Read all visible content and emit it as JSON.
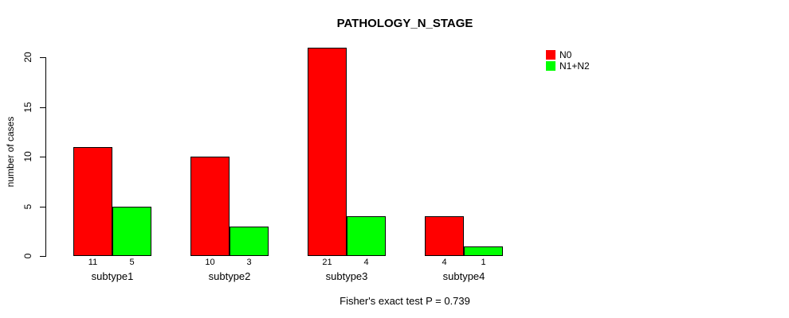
{
  "chart_data": {
    "type": "bar",
    "title": "PATHOLOGY_N_STAGE",
    "ylabel": "number of cases",
    "xlabel": "",
    "categories": [
      "subtype1",
      "subtype2",
      "subtype3",
      "subtype4"
    ],
    "series": [
      {
        "name": "N0",
        "color": "#FF0000",
        "values": [
          11,
          10,
          21,
          4
        ]
      },
      {
        "name": "N1+N2",
        "color": "#00FF00",
        "values": [
          5,
          3,
          4,
          1
        ]
      }
    ],
    "yticks": [
      0,
      5,
      10,
      15,
      20
    ],
    "ylim": [
      0,
      21
    ],
    "grid": false,
    "legend_position": "top-right-outside",
    "bar_value_labels": true,
    "annotation": "Fisher's exact test P = 0.739",
    "background_color": "#FFFFFF",
    "axis_color": "#000000"
  }
}
